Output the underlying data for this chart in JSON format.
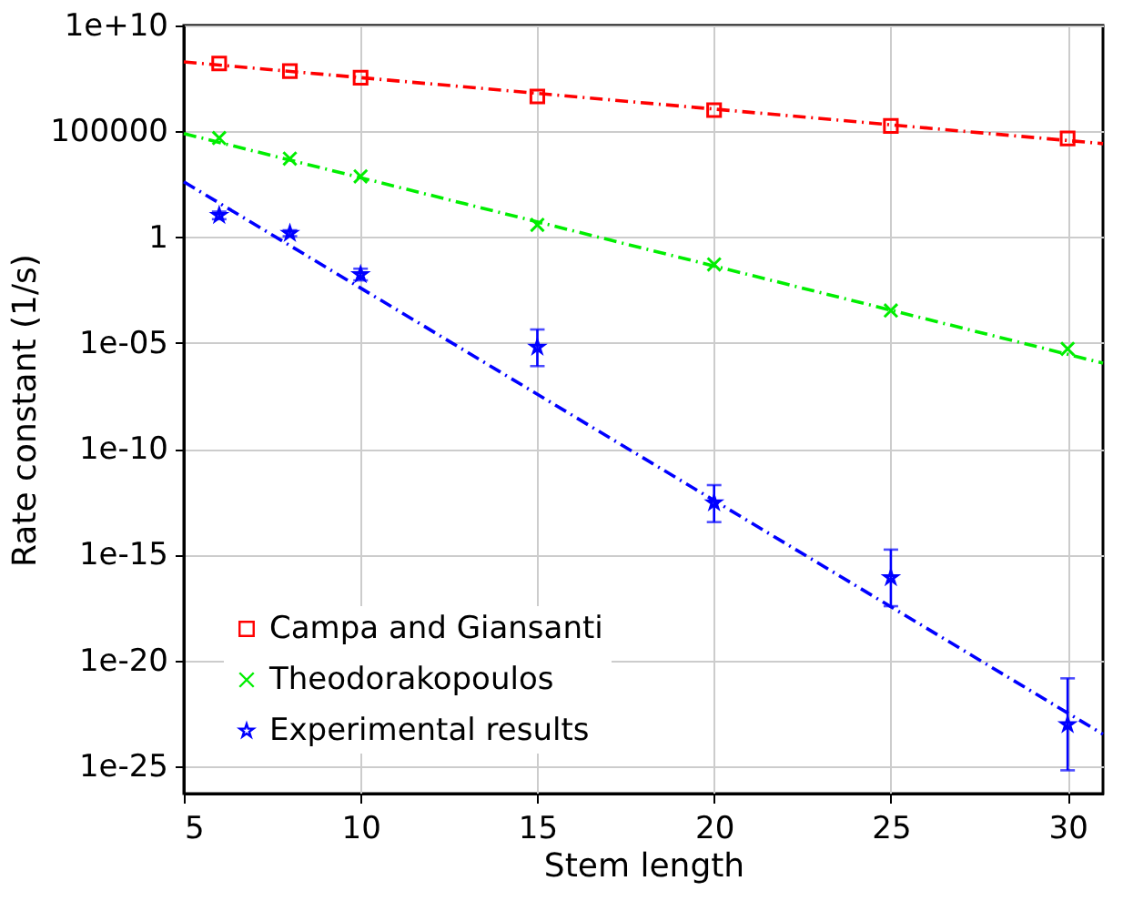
{
  "chart_data": {
    "type": "scatter",
    "xlabel": "Stem length",
    "ylabel": "Rate constant (1/s)",
    "xlim": [
      5,
      31
    ],
    "xticks": [
      5,
      10,
      15,
      20,
      25,
      30
    ],
    "ylim": [
      5e-27,
      10000000000.0
    ],
    "yticks": [
      {
        "value": 10000000000.0,
        "label": "1e+10"
      },
      100000,
      1,
      {
        "value": 1e-05,
        "label": "1e-05"
      },
      {
        "value": 1e-10,
        "label": "1e-10"
      },
      {
        "value": 1e-15,
        "label": "1e-15"
      },
      {
        "value": 1e-20,
        "label": "1e-20"
      },
      {
        "value": 1e-25,
        "label": "1e-25"
      }
    ],
    "log": "y",
    "grid": true,
    "legend": "bottom left",
    "series": [
      {
        "name": "Campa and Giansanti",
        "color": "#ff0000",
        "marker": "square",
        "x": [
          6,
          8,
          10,
          15,
          20,
          25,
          30
        ],
        "values": [
          160000000.0,
          70000000.0,
          34000000.0,
          4400000.0,
          1000000.0,
          180000.0,
          46000.0
        ]
      },
      {
        "name": "Theodorakopoulos",
        "color": "#00ee00",
        "marker": "cross",
        "x": [
          6,
          8,
          10,
          15,
          20,
          25,
          30
        ],
        "values": [
          48000.0,
          5100.0,
          740.0,
          3.8,
          0.051,
          0.00034,
          5.2e-06
        ]
      },
      {
        "name": "Experimental results",
        "color": "#0000ff",
        "marker": "star",
        "x": [
          6,
          8,
          10,
          15,
          20,
          25,
          30
        ],
        "values": [
          10.7,
          1.5,
          0.017,
          6.3e-06,
          2.8e-13,
          8.1e-17,
          9.1e-24
        ],
        "errors": [
          [
            7,
            16
          ],
          [
            1.1,
            2.1
          ],
          [
            0.009,
            0.032
          ],
          [
            8e-07,
            4.3e-05
          ],
          [
            3.4e-14,
            1.9e-12
          ],
          [
            3.6e-18,
            1.7e-15
          ],
          [
            6.3e-26,
            1.4e-21
          ]
        ]
      },
      {
        "type": "line",
        "color": "#ff0000",
        "line_style": "dashed",
        "x": [
          5,
          31
        ],
        "values": [
          190000000.0,
          26000.0
        ]
      },
      {
        "type": "line",
        "color": "#00ee00",
        "line_style": "dashed",
        "x": [
          5,
          31
        ],
        "values": [
          78000.0,
          1.1e-06
        ]
      },
      {
        "type": "line",
        "color": "#0000ff",
        "line_style": "dashed",
        "x": [
          5,
          31
        ],
        "values": [
          410.0,
          3.2e-24
        ]
      }
    ]
  }
}
